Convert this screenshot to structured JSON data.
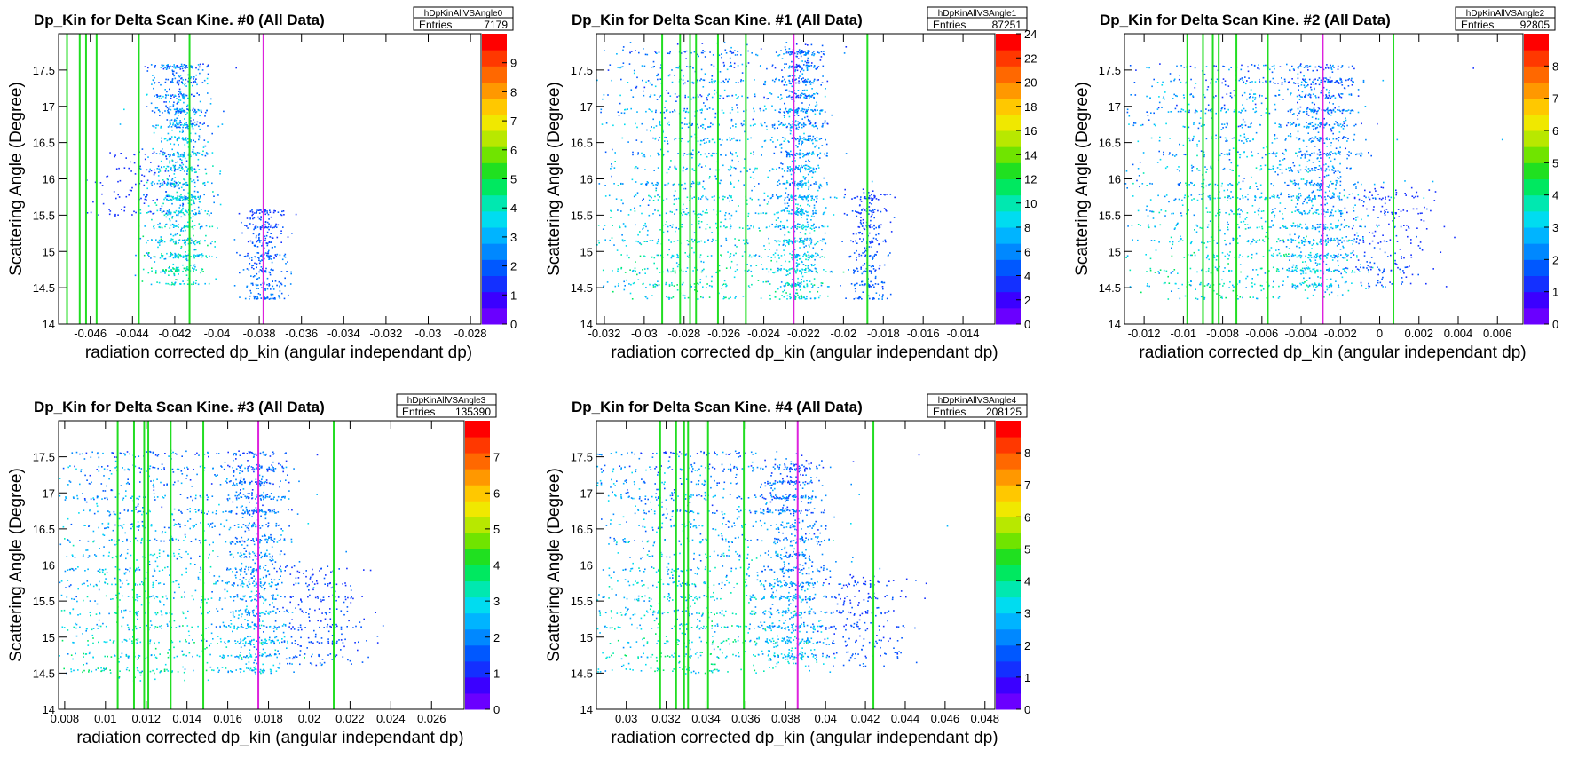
{
  "figure": {
    "xlabel": "radiation corrected dp_kin (angular independant dp)",
    "ylabel": "Scattering Angle (Degree)",
    "stats_entries_label": "Entries"
  },
  "chart_data": [
    {
      "type": "heatmap",
      "title": "Dp_Kin for Delta Scan Kine. #0 (All Data)",
      "hist_name": "hDpKinAllVSAngle0",
      "entries": "7179",
      "xlabel": "radiation corrected dp_kin (angular independant dp)",
      "ylabel": "Scattering Angle (Degree)",
      "xlim": [
        -0.0475,
        -0.0275
      ],
      "ylim": [
        14,
        18
      ],
      "x_ticks": [
        "-0.046",
        "-0.044",
        "-0.042",
        "-0.04",
        "-0.038",
        "-0.036",
        "-0.034",
        "-0.032",
        "-0.03",
        "-0.028"
      ],
      "x_tick_values": [
        -0.046,
        -0.044,
        -0.042,
        -0.04,
        -0.038,
        -0.036,
        -0.034,
        -0.032,
        -0.03,
        -0.028
      ],
      "y_ticks": [
        "14",
        "14.5",
        "15",
        "15.5",
        "16",
        "16.5",
        "17",
        "17.5"
      ],
      "colorbar_max": 10,
      "colorbar_ticks": [
        "0",
        "1",
        "2",
        "3",
        "4",
        "5",
        "6",
        "7",
        "8",
        "9"
      ],
      "vlines_green": [
        -0.0471,
        -0.0465,
        -0.0462,
        -0.0457,
        -0.0437,
        -0.0413
      ],
      "vline_magenta": -0.0378,
      "clusters": [
        {
          "x": -0.0418,
          "spread": 0.0007,
          "ymin": 14.55,
          "ymax": 17.6,
          "density": 1.0
        },
        {
          "x": -0.0438,
          "spread": 0.0012,
          "ymin": 15.5,
          "ymax": 16.4,
          "density": 0.15
        },
        {
          "x": -0.0378,
          "spread": 0.0005,
          "ymin": 14.35,
          "ymax": 15.6,
          "density": 0.45
        }
      ]
    },
    {
      "type": "heatmap",
      "title": "Dp_Kin for Delta Scan Kine. #1 (All Data)",
      "hist_name": "hDpKinAllVSAngle1",
      "entries": "87251",
      "xlabel": "radiation corrected dp_kin (angular independant dp)",
      "ylabel": "Scattering Angle (Degree)",
      "xlim": [
        -0.0324,
        -0.0124
      ],
      "ylim": [
        14,
        18
      ],
      "x_ticks": [
        "-0.032",
        "-0.03",
        "-0.028",
        "-0.026",
        "-0.024",
        "-0.022",
        "-0.02",
        "-0.018",
        "-0.016",
        "-0.014"
      ],
      "x_tick_values": [
        -0.032,
        -0.03,
        -0.028,
        -0.026,
        -0.024,
        -0.022,
        -0.02,
        -0.018,
        -0.016,
        -0.014
      ],
      "y_ticks": [
        "14",
        "14.5",
        "15",
        "15.5",
        "16",
        "16.5",
        "17",
        "17.5"
      ],
      "colorbar_max": 24,
      "colorbar_ticks": [
        "0",
        "2",
        "4",
        "6",
        "8",
        "10",
        "12",
        "14",
        "16",
        "18",
        "20",
        "22",
        "24"
      ],
      "vlines_green": [
        -0.0291,
        -0.0282,
        -0.0277,
        -0.0274,
        -0.0263,
        -0.0249,
        -0.0188
      ],
      "vline_magenta": -0.0225,
      "clusters": [
        {
          "x": -0.0275,
          "spread": 0.0028,
          "ymin": 14.35,
          "ymax": 17.9,
          "density": 1.0
        },
        {
          "x": -0.0222,
          "spread": 0.0006,
          "ymin": 14.35,
          "ymax": 17.9,
          "density": 0.9
        },
        {
          "x": -0.0188,
          "spread": 0.0005,
          "ymin": 14.35,
          "ymax": 15.9,
          "density": 0.35
        }
      ]
    },
    {
      "type": "heatmap",
      "title": "Dp_Kin for Delta Scan Kine. #2 (All Data)",
      "hist_name": "hDpKinAllVSAngle2",
      "entries": "92805",
      "xlabel": "radiation corrected dp_kin (angular independant dp)",
      "ylabel": "Scattering Angle (Degree)",
      "xlim": [
        -0.013,
        0.0073
      ],
      "ylim": [
        14,
        18
      ],
      "x_ticks": [
        "-0.012",
        "-0.01",
        "-0.008",
        "-0.006",
        "-0.004",
        "-0.002",
        "0",
        "0.002",
        "0.004",
        "0.006"
      ],
      "x_tick_values": [
        -0.012,
        -0.01,
        -0.008,
        -0.006,
        -0.004,
        -0.002,
        0,
        0.002,
        0.004,
        0.006
      ],
      "y_ticks": [
        "14",
        "14.5",
        "15",
        "15.5",
        "16",
        "16.5",
        "17",
        "17.5"
      ],
      "colorbar_max": 9,
      "colorbar_ticks": [
        "0",
        "1",
        "2",
        "3",
        "4",
        "5",
        "6",
        "7",
        "8"
      ],
      "vlines_green": [
        -0.0098,
        -0.009,
        -0.0085,
        -0.0082,
        -0.0073,
        -0.0057,
        0.0007
      ],
      "vline_magenta": -0.0029,
      "clusters": [
        {
          "x": -0.0075,
          "spread": 0.0032,
          "ymin": 14.35,
          "ymax": 17.6,
          "density": 1.0
        },
        {
          "x": -0.003,
          "spread": 0.0009,
          "ymin": 14.4,
          "ymax": 17.6,
          "density": 0.8
        },
        {
          "x": 0.0005,
          "spread": 0.0012,
          "ymin": 14.5,
          "ymax": 15.9,
          "density": 0.25
        }
      ]
    },
    {
      "type": "heatmap",
      "title": "Dp_Kin for Delta Scan Kine. #3 (All Data)",
      "hist_name": "hDpKinAllVSAngle3",
      "entries": "135390",
      "xlabel": "radiation corrected dp_kin (angular independant dp)",
      "ylabel": "Scattering Angle (Degree)",
      "xlim": [
        0.0077,
        0.0276
      ],
      "ylim": [
        14,
        18
      ],
      "x_ticks": [
        "0.008",
        "0.01",
        "0.012",
        "0.014",
        "0.016",
        "0.018",
        "0.02",
        "0.022",
        "0.024",
        "0.026"
      ],
      "x_tick_values": [
        0.008,
        0.01,
        0.012,
        0.014,
        0.016,
        0.018,
        0.02,
        0.022,
        0.024,
        0.026
      ],
      "y_ticks": [
        "14",
        "14.5",
        "15",
        "15.5",
        "16",
        "16.5",
        "17",
        "17.5"
      ],
      "colorbar_max": 8,
      "colorbar_ticks": [
        "0",
        "1",
        "2",
        "3",
        "4",
        "5",
        "6",
        "7"
      ],
      "vlines_green": [
        0.0106,
        0.0114,
        0.0119,
        0.0121,
        0.0132,
        0.0148,
        0.0212
      ],
      "vline_magenta": 0.0175,
      "clusters": [
        {
          "x": 0.0112,
          "spread": 0.0032,
          "ymin": 14.4,
          "ymax": 17.6,
          "density": 1.0
        },
        {
          "x": 0.0173,
          "spread": 0.0008,
          "ymin": 14.5,
          "ymax": 17.6,
          "density": 0.75
        },
        {
          "x": 0.0205,
          "spread": 0.0011,
          "ymin": 14.6,
          "ymax": 16.0,
          "density": 0.3
        }
      ]
    },
    {
      "type": "heatmap",
      "title": "Dp_Kin for Delta Scan Kine. #4 (All Data)",
      "hist_name": "hDpKinAllVSAngle4",
      "entries": "208125",
      "xlabel": "radiation corrected dp_kin (angular independant dp)",
      "ylabel": "Scattering Angle (Degree)",
      "xlim": [
        0.0285,
        0.0485
      ],
      "ylim": [
        14,
        18
      ],
      "x_ticks": [
        "0.03",
        "0.032",
        "0.034",
        "0.036",
        "0.038",
        "0.04",
        "0.042",
        "0.044",
        "0.046",
        "0.048"
      ],
      "x_tick_values": [
        0.03,
        0.032,
        0.034,
        0.036,
        0.038,
        0.04,
        0.042,
        0.044,
        0.046,
        0.048
      ],
      "y_ticks": [
        "14",
        "14.5",
        "15",
        "15.5",
        "16",
        "16.5",
        "17",
        "17.5"
      ],
      "colorbar_max": 9,
      "colorbar_ticks": [
        "0",
        "1",
        "2",
        "3",
        "4",
        "5",
        "6",
        "7",
        "8"
      ],
      "vlines_green": [
        0.0317,
        0.0325,
        0.0329,
        0.0331,
        0.0341,
        0.0359,
        0.0424
      ],
      "vline_magenta": 0.0386,
      "clusters": [
        {
          "x": 0.0328,
          "spread": 0.0031,
          "ymin": 14.5,
          "ymax": 17.6,
          "density": 1.0
        },
        {
          "x": 0.0383,
          "spread": 0.0008,
          "ymin": 14.6,
          "ymax": 17.5,
          "density": 0.75
        },
        {
          "x": 0.0418,
          "spread": 0.0012,
          "ymin": 14.6,
          "ymax": 15.9,
          "density": 0.3
        }
      ]
    }
  ]
}
